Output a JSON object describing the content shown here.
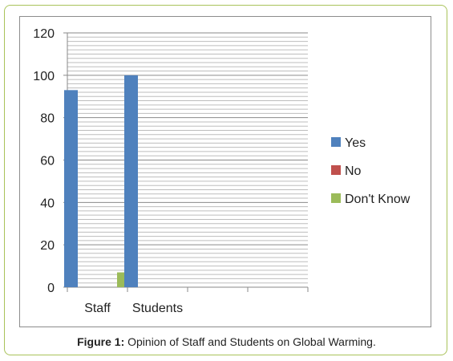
{
  "chart_data": {
    "type": "bar",
    "categories": [
      "Staff",
      "Students",
      "",
      ""
    ],
    "series": [
      {
        "name": "Yes",
        "values": [
          93,
          100,
          0,
          0
        ],
        "color": "#4f81bd"
      },
      {
        "name": "No",
        "values": [
          0,
          0,
          0,
          0
        ],
        "color": "#c0504d"
      },
      {
        "name": "Don't Know",
        "values": [
          7,
          0,
          0,
          0
        ],
        "color": "#9bbb59"
      }
    ],
    "yticks": [
      0,
      20,
      40,
      60,
      80,
      100,
      120
    ],
    "ylim": [
      0,
      120
    ],
    "grid": true,
    "legend_position": "right"
  },
  "caption": {
    "label": "Figure 1:",
    "text": " Opinion of Staff and Students on Global Warming."
  }
}
